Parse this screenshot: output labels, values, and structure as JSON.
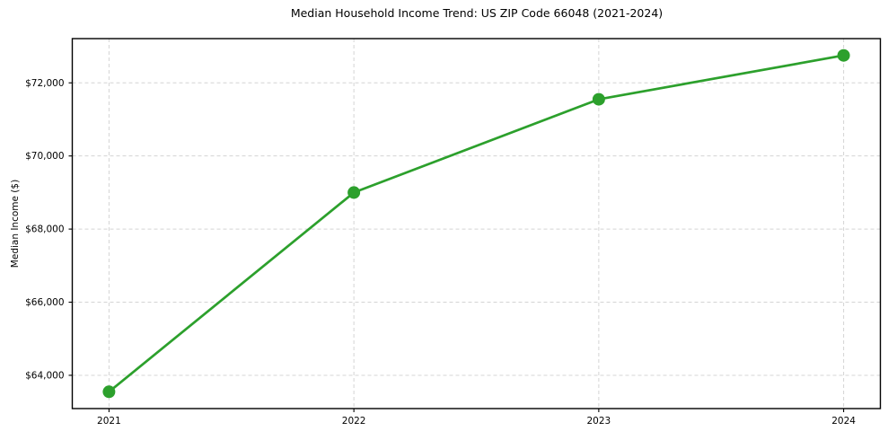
{
  "chart_data": {
    "type": "line",
    "title": "Median Household Income Trend: US ZIP Code 66048 (2021-2024)",
    "xlabel": "",
    "ylabel": "Median Income ($)",
    "x": [
      2021,
      2022,
      2023,
      2024
    ],
    "values": [
      63550,
      69000,
      71550,
      72750
    ],
    "xticks": [
      {
        "value": 2021,
        "label": "2021"
      },
      {
        "value": 2022,
        "label": "2022"
      },
      {
        "value": 2023,
        "label": "2023"
      },
      {
        "value": 2024,
        "label": "2024"
      }
    ],
    "yticks": [
      {
        "value": 64000,
        "label": "$64,000"
      },
      {
        "value": 66000,
        "label": "$66,000"
      },
      {
        "value": 68000,
        "label": "$68,000"
      },
      {
        "value": 70000,
        "label": "$70,000"
      },
      {
        "value": 72000,
        "label": "$72,000"
      }
    ],
    "xlim": [
      2020.85,
      2024.15
    ],
    "ylim": [
      63090,
      73210
    ],
    "grid": true,
    "grid_style": "dashed",
    "legend_position": "none",
    "marker": "circle",
    "colors": {
      "line": "#2ca02c",
      "marker": "#2ca02c",
      "grid": "#d4d4d4",
      "axis": "#000000",
      "text": "#000000",
      "background": "#ffffff"
    }
  }
}
